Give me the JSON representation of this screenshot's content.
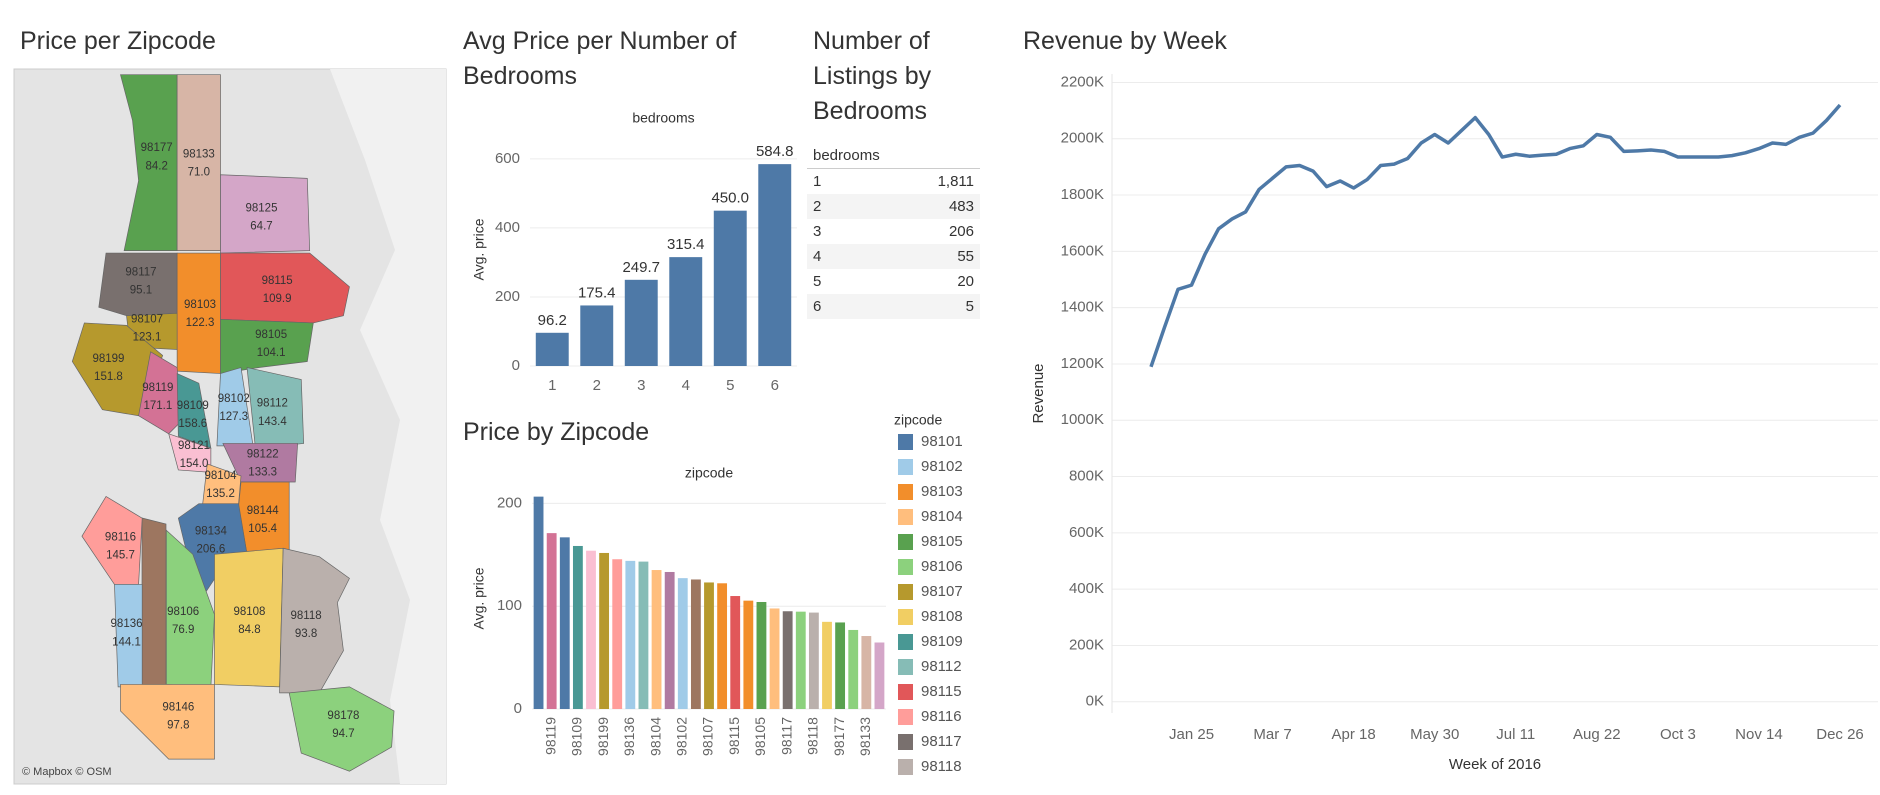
{
  "map": {
    "title": "Price per Zipcode",
    "attribution": "© Mapbox © OSM",
    "regions": [
      {
        "zipcode": "98177",
        "price": "84.2",
        "color": "#59a14f"
      },
      {
        "zipcode": "98133",
        "price": "71.0",
        "color": "#d7b5a6"
      },
      {
        "zipcode": "98125",
        "price": "64.7",
        "color": "#d4a6c8"
      },
      {
        "zipcode": "98117",
        "price": "95.1",
        "color": "#79706e"
      },
      {
        "zipcode": "98103",
        "price": "122.3",
        "color": "#f28e2b"
      },
      {
        "zipcode": "98115",
        "price": "109.9",
        "color": "#e15759"
      },
      {
        "zipcode": "98107",
        "price": "123.1",
        "color": "#b6992d"
      },
      {
        "zipcode": "98105",
        "price": "104.1",
        "color": "#59a14f"
      },
      {
        "zipcode": "98199",
        "price": "151.8",
        "color": "#b6992d"
      },
      {
        "zipcode": "98119",
        "price": "171.1",
        "color": "#d37295"
      },
      {
        "zipcode": "98109",
        "price": "158.6",
        "color": "#499894"
      },
      {
        "zipcode": "98102",
        "price": "127.3",
        "color": "#a0cbe8"
      },
      {
        "zipcode": "98112",
        "price": "143.4",
        "color": "#86bcb6"
      },
      {
        "zipcode": "98121",
        "price": "154.0",
        "color": "#fabfd2"
      },
      {
        "zipcode": "98122",
        "price": "133.3",
        "color": "#b07aa1"
      },
      {
        "zipcode": "98104",
        "price": "135.2",
        "color": "#ffbe7d"
      },
      {
        "zipcode": "98144",
        "price": "105.4",
        "color": "#f28e2b"
      },
      {
        "zipcode": "98116",
        "price": "145.7",
        "color": "#ff9d9a"
      },
      {
        "zipcode": "98134",
        "price": "206.6",
        "color": "#4e79a7"
      },
      {
        "zipcode": "98136",
        "price": "144.1",
        "color": "#a0cbe8"
      },
      {
        "zipcode": "98106",
        "price": "76.9",
        "color": "#8cd17d"
      },
      {
        "zipcode": "98108",
        "price": "84.8",
        "color": "#f1ce63"
      },
      {
        "zipcode": "98118",
        "price": "93.8",
        "color": "#bab0ac"
      },
      {
        "zipcode": "98146",
        "price": "97.8",
        "color": "#ffbe7d"
      },
      {
        "zipcode": "98178",
        "price": "94.7",
        "color": "#8cd17d"
      }
    ]
  },
  "table": {
    "title": "Number of Listings by Bedrooms",
    "header": "bedrooms",
    "rows": [
      [
        "1",
        "1,811"
      ],
      [
        "2",
        "483"
      ],
      [
        "3",
        "206"
      ],
      [
        "4",
        "55"
      ],
      [
        "5",
        "20"
      ],
      [
        "6",
        "5"
      ]
    ]
  },
  "chart_data": [
    {
      "type": "bar",
      "title": "Avg Price per Number of Bedrooms",
      "subtitle": "bedrooms",
      "y_label": "Avg. price",
      "categories": [
        "1",
        "2",
        "3",
        "4",
        "5",
        "6"
      ],
      "values": [
        96.2,
        175.4,
        249.7,
        315.4,
        450.0,
        584.8
      ],
      "value_labels": [
        "96.2",
        "175.4",
        "249.7",
        "315.4",
        "450.0",
        "584.8"
      ],
      "color": "#4e79a7",
      "ylim": [
        0,
        675
      ],
      "yticks": [
        0,
        200,
        400,
        600
      ],
      "grid": true
    },
    {
      "type": "bar",
      "title": "Price by Zipcode",
      "subtitle": "zipcode",
      "y_label": "Avg. price",
      "categories": [
        null,
        "98119",
        null,
        "98109",
        null,
        "98199",
        null,
        "98136",
        null,
        "98104",
        null,
        "98102",
        null,
        "98107",
        null,
        "98115",
        null,
        "98105",
        null,
        "98117",
        null,
        "98118",
        null,
        "98177",
        null,
        "98133",
        null
      ],
      "values": [
        206.6,
        171.1,
        167,
        158.6,
        154.0,
        151.8,
        145.7,
        144.1,
        143.4,
        135.2,
        133.3,
        127.3,
        126,
        123.1,
        122.3,
        109.9,
        105.4,
        104.1,
        97.8,
        95.1,
        94.7,
        93.8,
        84.8,
        84.2,
        76.9,
        71.0,
        64.7
      ],
      "colors": [
        "#4e79a7",
        "#d37295",
        "#4e79a7",
        "#499894",
        "#fabfd2",
        "#b6992d",
        "#ff9d9a",
        "#a0cbe8",
        "#86bcb6",
        "#ffbe7d",
        "#b07aa1",
        "#a0cbe8",
        "#9d7660",
        "#b6992d",
        "#f28e2b",
        "#e15759",
        "#f28e2b",
        "#59a14f",
        "#ffbe7d",
        "#79706e",
        "#8cd17d",
        "#bab0ac",
        "#f1ce63",
        "#59a14f",
        "#8cd17d",
        "#d7b5a6",
        "#d4a6c8"
      ],
      "ylim": [
        0,
        215
      ],
      "yticks": [
        0,
        100,
        200
      ],
      "grid": true,
      "legend_title": "zipcode",
      "legend": [
        {
          "name": "98101",
          "color": "#4e79a7"
        },
        {
          "name": "98102",
          "color": "#a0cbe8"
        },
        {
          "name": "98103",
          "color": "#f28e2b"
        },
        {
          "name": "98104",
          "color": "#ffbe7d"
        },
        {
          "name": "98105",
          "color": "#59a14f"
        },
        {
          "name": "98106",
          "color": "#8cd17d"
        },
        {
          "name": "98107",
          "color": "#b6992d"
        },
        {
          "name": "98108",
          "color": "#f1ce63"
        },
        {
          "name": "98109",
          "color": "#499894"
        },
        {
          "name": "98112",
          "color": "#86bcb6"
        },
        {
          "name": "98115",
          "color": "#e15759"
        },
        {
          "name": "98116",
          "color": "#ff9d9a"
        },
        {
          "name": "98117",
          "color": "#79706e"
        },
        {
          "name": "98118",
          "color": "#bab0ac"
        }
      ]
    },
    {
      "type": "line",
      "title": "Revenue by Week",
      "x_label": "Week of 2016",
      "y_label": "Revenue",
      "categories": [
        null,
        null,
        null,
        "Jan 25",
        null,
        null,
        null,
        null,
        null,
        "Mar 7",
        null,
        null,
        null,
        null,
        null,
        "Apr 18",
        null,
        null,
        null,
        null,
        null,
        "May 30",
        null,
        null,
        null,
        null,
        null,
        "Jul 11",
        null,
        null,
        null,
        null,
        null,
        "Aug 22",
        null,
        null,
        null,
        null,
        null,
        "Oct 3",
        null,
        null,
        null,
        null,
        null,
        "Nov 14",
        null,
        null,
        null,
        null,
        null,
        "Dec 26"
      ],
      "values": [
        1190000,
        1330000,
        1465000,
        1480000,
        1590000,
        1680000,
        1715000,
        1740000,
        1820000,
        1860000,
        1900000,
        1905000,
        1885000,
        1830000,
        1850000,
        1825000,
        1855000,
        1905000,
        1910000,
        1930000,
        1985000,
        2015000,
        1985000,
        2030000,
        2075000,
        2015000,
        1935000,
        1945000,
        1938000,
        1942000,
        1945000,
        1965000,
        1975000,
        2015000,
        2005000,
        1955000,
        1957000,
        1960000,
        1955000,
        1935000,
        1935000,
        1935000,
        1935000,
        1940000,
        1950000,
        1965000,
        1985000,
        1980000,
        2005000,
        2020000,
        2065000,
        2120000
      ],
      "color": "#4e79a7",
      "ylim": [
        -40000,
        2230000
      ],
      "yticks": [
        {
          "value": 0,
          "label": "0K"
        },
        {
          "value": 200000,
          "label": "200K"
        },
        {
          "value": 400000,
          "label": "400K"
        },
        {
          "value": 600000,
          "label": "600K"
        },
        {
          "value": 800000,
          "label": "800K"
        },
        {
          "value": 1000000,
          "label": "1000K"
        },
        {
          "value": 1200000,
          "label": "1200K"
        },
        {
          "value": 1400000,
          "label": "1400K"
        },
        {
          "value": 1600000,
          "label": "1600K"
        },
        {
          "value": 1800000,
          "label": "1800K"
        },
        {
          "value": 2000000,
          "label": "2000K"
        },
        {
          "value": 2200000,
          "label": "2200K"
        }
      ],
      "grid": true
    }
  ]
}
